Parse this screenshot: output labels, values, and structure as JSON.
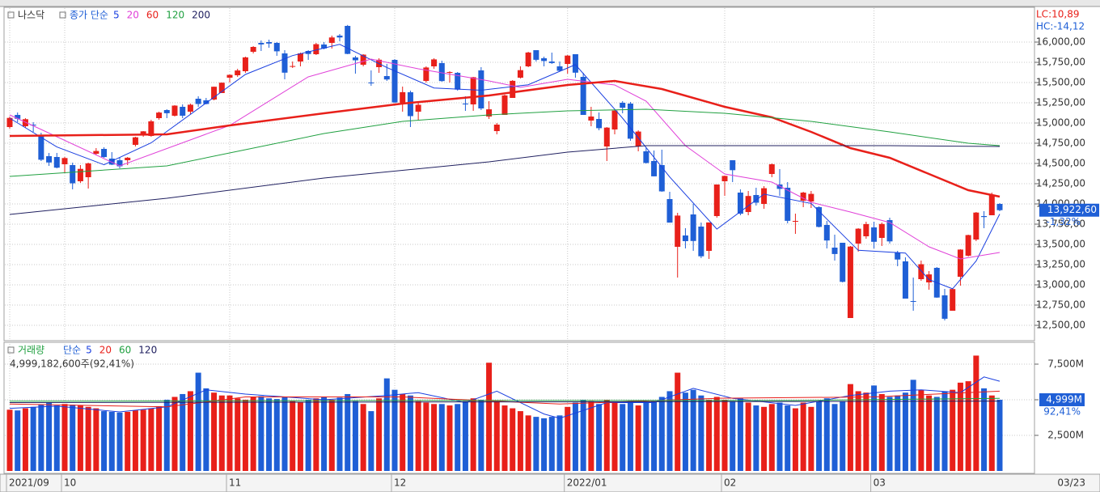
{
  "chart_data": {
    "type": "candlestick",
    "title": "나스닥",
    "categories": [
      "2021/09",
      null,
      null,
      null,
      null,
      null,
      null,
      "10",
      null,
      null,
      null,
      null,
      null,
      null,
      null,
      null,
      null,
      null,
      null,
      null,
      null,
      null,
      null,
      null,
      null,
      null,
      null,
      null,
      "11",
      null,
      null,
      null,
      null,
      null,
      null,
      null,
      null,
      null,
      null,
      null,
      null,
      null,
      null,
      null,
      null,
      null,
      null,
      null,
      null,
      "12",
      null,
      null,
      null,
      null,
      null,
      null,
      null,
      null,
      null,
      null,
      null,
      null,
      null,
      null,
      null,
      null,
      null,
      null,
      null,
      null,
      null,
      "2022/01",
      null,
      null,
      null,
      null,
      null,
      null,
      null,
      null,
      null,
      null,
      null,
      null,
      null,
      null,
      null,
      null,
      null,
      null,
      null,
      "02",
      null,
      null,
      null,
      null,
      null,
      null,
      null,
      null,
      null,
      null,
      null,
      null,
      null,
      null,
      null,
      null,
      null,
      null,
      "03",
      null,
      null,
      null,
      null,
      null,
      null,
      null,
      null,
      null,
      null,
      null,
      null,
      null,
      null,
      null,
      null
    ],
    "end_label": "03/23",
    "up_color": "#e8201a",
    "down_color": "#1f5fd6",
    "grid": true,
    "price": {
      "legend_label": "종가 단순",
      "ylim": [
        12320,
        16420
      ],
      "yticks": [
        {
          "value": 12500,
          "label": "12,500,00"
        },
        {
          "value": 12750,
          "label": "12,750,00"
        },
        {
          "value": 13000,
          "label": "13,000,00"
        },
        {
          "value": 13250,
          "label": "13,250,00"
        },
        {
          "value": 13500,
          "label": "13,500,00"
        },
        {
          "value": 13750,
          "label": "13,750,00"
        },
        {
          "value": 14000,
          "label": "14,000,00"
        },
        {
          "value": 14250,
          "label": "14,250,00"
        },
        {
          "value": 14500,
          "label": "14,500,00"
        },
        {
          "value": 14750,
          "label": "14,750,00"
        },
        {
          "value": 15000,
          "label": "15,000,00"
        },
        {
          "value": 15250,
          "label": "15,250,00"
        },
        {
          "value": 15500,
          "label": "15,500,00"
        },
        {
          "value": 15750,
          "label": "15,750,00"
        },
        {
          "value": 16000,
          "label": "16,000,00"
        }
      ],
      "open": [
        14950,
        15100,
        14960,
        14980,
        14850,
        14590,
        14580,
        14490,
        14480,
        14280,
        14330,
        14620,
        14680,
        14560,
        14540,
        14540,
        14730,
        14860,
        14840,
        15060,
        15160,
        15090,
        15200,
        15140,
        15300,
        15280,
        15290,
        15370,
        15560,
        15590,
        15640,
        15880,
        15990,
        16000,
        15990,
        15860,
        15700,
        15760,
        15890,
        15850,
        15970,
        15990,
        16080,
        16200,
        15810,
        15720,
        15500,
        15690,
        15580,
        15780,
        15250,
        15380,
        15140,
        15520,
        15700,
        15740,
        15620,
        15620,
        15240,
        15230,
        15650,
        15080,
        14900,
        15100,
        15310,
        15560,
        15700,
        15900,
        15800,
        15760,
        15700,
        15730,
        15850,
        15570,
        15030,
        15050,
        14710,
        14920,
        15250,
        15240,
        14710,
        14650,
        14530,
        14480,
        14060,
        13470,
        13610,
        13870,
        13720,
        13420,
        13850,
        14280,
        14540,
        14140,
        13900,
        14110,
        14000,
        14370,
        14240,
        14200,
        13790,
        14040,
        14030,
        13960,
        13740,
        13460,
        13520,
        12590,
        13510,
        13600,
        13710,
        13580,
        13800,
        13400,
        13290,
        12800,
        13070,
        13030,
        13210,
        12870,
        12680,
        13100,
        13360,
        13560,
        13850,
        13860,
        14000
      ],
      "high": [
        15080,
        15130,
        15060,
        15010,
        14880,
        14630,
        14630,
        14580,
        14510,
        14480,
        14510,
        14690,
        14700,
        14640,
        14580,
        14580,
        14830,
        14900,
        15040,
        15140,
        15170,
        15220,
        15230,
        15240,
        15330,
        15310,
        15450,
        15500,
        15600,
        15670,
        15820,
        15950,
        16020,
        16030,
        16000,
        15900,
        15760,
        15870,
        15900,
        15990,
        16000,
        16080,
        16100,
        16212,
        15830,
        15850,
        15650,
        15800,
        15730,
        15790,
        15450,
        15400,
        15260,
        15700,
        15800,
        15770,
        15640,
        15630,
        15330,
        15570,
        15690,
        15270,
        15000,
        15350,
        15530,
        15700,
        15880,
        15900,
        15820,
        15870,
        15760,
        15840,
        15850,
        15620,
        15200,
        15130,
        14950,
        15160,
        15270,
        15260,
        14910,
        14700,
        14660,
        14670,
        14150,
        13890,
        13700,
        14000,
        13770,
        13770,
        14240,
        14350,
        14540,
        14180,
        14160,
        14200,
        14220,
        14500,
        14430,
        14270,
        13880,
        14150,
        14160,
        13970,
        13790,
        13620,
        13520,
        13480,
        13700,
        13780,
        13780,
        13770,
        13830,
        13420,
        13340,
        13090,
        13300,
        13170,
        13220,
        12950,
        12960,
        13440,
        13620,
        13900,
        13910,
        14140,
        14010
      ],
      "low": [
        14930,
        15010,
        14940,
        14890,
        14530,
        14470,
        14440,
        14380,
        14180,
        14260,
        14190,
        14600,
        14570,
        14480,
        14440,
        14480,
        14710,
        14830,
        14830,
        15040,
        15060,
        15080,
        15060,
        15110,
        15200,
        15230,
        15280,
        15370,
        15500,
        15570,
        15620,
        15860,
        15890,
        15930,
        15830,
        15540,
        15680,
        15700,
        15780,
        15840,
        15910,
        15920,
        16010,
        15850,
        15610,
        15700,
        15460,
        15620,
        15520,
        15250,
        15140,
        14950,
        15030,
        15500,
        15670,
        15510,
        15500,
        15400,
        15150,
        15150,
        15160,
        15050,
        14860,
        15100,
        15310,
        15550,
        15690,
        15760,
        15700,
        15730,
        15640,
        15610,
        15560,
        15100,
        14960,
        14910,
        14530,
        14860,
        15120,
        14780,
        14650,
        14500,
        14340,
        14150,
        13770,
        13090,
        13450,
        13420,
        13330,
        13320,
        13830,
        14100,
        14270,
        13860,
        13860,
        13980,
        13940,
        14330,
        14100,
        13760,
        13630,
        13960,
        13950,
        13710,
        13450,
        13300,
        13030,
        12590,
        13410,
        13570,
        13450,
        13480,
        13510,
        13230,
        12830,
        12680,
        13050,
        12940,
        12840,
        12560,
        12680,
        12990,
        13350,
        13540,
        13700,
        13860,
        13910
      ],
      "close": [
        15063,
        15052,
        15047,
        14969,
        14546,
        14512,
        14448,
        14567,
        14255,
        14433,
        14501,
        14654,
        14579,
        14486,
        14465,
        14571,
        14823,
        14897,
        15021,
        15129,
        15121,
        15215,
        15090,
        15226,
        15235,
        15235,
        15448,
        15498,
        15595,
        15649,
        15811,
        15940,
        15971,
        15982,
        15886,
        15622,
        15704,
        15860,
        15853,
        15974,
        15921,
        16057,
        16057,
        15854,
        15775,
        15845,
        15491,
        15782,
        15538,
        15254,
        15381,
        15085,
        15225,
        15686,
        15786,
        15518,
        15630,
        15413,
        15237,
        15566,
        15180,
        15169,
        14980,
        15341,
        15521,
        15653,
        15871,
        15781,
        15766,
        15741,
        15645,
        15833,
        15622,
        15100,
        15080,
        14936,
        14943,
        15153,
        15188,
        14806,
        14894,
        14506,
        14341,
        14155,
        13769,
        13856,
        13540,
        13542,
        13353,
        13771,
        14240,
        14346,
        14417,
        13879,
        14098,
        14015,
        14194,
        14490,
        14186,
        13791,
        13790,
        14140,
        14124,
        13716,
        13548,
        13381,
        13037,
        13473,
        13694,
        13751,
        13532,
        13752,
        13537,
        13313,
        12830,
        12795,
        13255,
        13129,
        12843,
        12581,
        12948,
        13436,
        13615,
        13893,
        13838,
        14109,
        13922.6
      ],
      "moving_averages": [
        {
          "name": "5",
          "color": "#1a3fe0",
          "width": 1,
          "x": [
            0,
            6,
            12,
            18,
            24,
            30,
            36,
            42,
            48,
            54,
            60,
            66,
            72,
            78,
            84,
            90,
            96,
            102,
            108,
            114,
            117,
            120,
            123,
            126
          ],
          "values": [
            15060,
            14704,
            14484,
            14755,
            15177,
            15600,
            15833,
            15972,
            15686,
            15433,
            15405,
            15473,
            15721,
            15060,
            14333,
            13689,
            14121,
            14006,
            13427,
            13393,
            13064,
            12951,
            13295,
            13875
          ]
        },
        {
          "name": "20",
          "color": "#e040d8",
          "width": 1,
          "x": [
            0,
            14,
            28,
            38,
            46,
            52,
            61,
            65,
            71,
            77,
            81,
            86,
            91,
            97,
            102,
            107,
            112,
            117,
            121,
            126
          ],
          "values": [
            15100,
            14470,
            14970,
            15570,
            15790,
            15670,
            15520,
            15440,
            15540,
            15470,
            15270,
            14720,
            14370,
            14270,
            14020,
            13900,
            13770,
            13470,
            13320,
            13400
          ]
        },
        {
          "name": "60",
          "color": "#e8201a",
          "width": 2.5,
          "x": [
            0,
            20,
            28,
            40,
            50,
            61,
            71,
            77,
            83,
            91,
            97,
            102,
            107,
            112,
            117,
            122,
            126
          ],
          "values": [
            14840,
            14860,
            14970,
            15120,
            15240,
            15340,
            15470,
            15520,
            15420,
            15200,
            15070,
            14890,
            14690,
            14570,
            14370,
            14170,
            14090
          ]
        },
        {
          "name": "120",
          "color": "#20a040",
          "width": 1,
          "x": [
            0,
            20,
            30,
            40,
            50,
            61,
            71,
            81,
            91,
            102,
            112,
            122,
            126
          ],
          "values": [
            14340,
            14470,
            14670,
            14870,
            15020,
            15100,
            15150,
            15170,
            15120,
            15020,
            14890,
            14750,
            14720
          ]
        },
        {
          "name": "200",
          "color": "#202060",
          "width": 1,
          "x": [
            0,
            20,
            40,
            61,
            71,
            81,
            91,
            102,
            112,
            126
          ],
          "values": [
            13870,
            14070,
            14320,
            14520,
            14640,
            14720,
            14720,
            14720,
            14720,
            14710
          ]
        }
      ],
      "limit_labels": [
        {
          "text": "LC:10,89",
          "color": "#e8201a"
        },
        {
          "text": "HC:-14,12",
          "color": "#1f5fd6"
        }
      ],
      "last_label": "13,922,60",
      "change_label": "-1,32%"
    },
    "volume": {
      "title": "거래량",
      "legend_label": "단순",
      "ylim": [
        0,
        8920
      ],
      "yticks": [
        {
          "value": 2500,
          "label": "2,500M"
        },
        {
          "value": 5000,
          "label": "5,000M"
        },
        {
          "value": 7500,
          "label": "7,500M"
        }
      ],
      "values": [
        4300,
        4250,
        4400,
        4500,
        4650,
        4800,
        4600,
        4700,
        4650,
        4600,
        4500,
        4400,
        4200,
        4150,
        4100,
        4150,
        4250,
        4300,
        4400,
        4550,
        5000,
        5200,
        5400,
        5600,
        6900,
        5800,
        5500,
        5300,
        5300,
        5100,
        5000,
        5200,
        5250,
        5100,
        5050,
        5200,
        4900,
        4800,
        5000,
        5100,
        5200,
        5000,
        5150,
        5400,
        4900,
        4700,
        4200,
        5100,
        6500,
        5700,
        5400,
        5300,
        4900,
        4800,
        4700,
        4700,
        4600,
        4700,
        4900,
        5100,
        5000,
        7600,
        4900,
        4600,
        4400,
        4200,
        3900,
        3800,
        3700,
        3800,
        3900,
        4500,
        4800,
        5000,
        4900,
        4700,
        5000,
        4800,
        4700,
        4900,
        4600,
        4800,
        4900,
        5200,
        5600,
        6900,
        5500,
        5700,
        5300,
        5000,
        5200,
        5000,
        4900,
        5100,
        4800,
        4600,
        4500,
        4700,
        4800,
        4600,
        4400,
        4800,
        4500,
        4900,
        5100,
        4700,
        4900,
        6100,
        5600,
        5500,
        6000,
        5400,
        5200,
        5300,
        5500,
        6400,
        5700,
        5300,
        5200,
        5600,
        5700,
        6200,
        6300,
        8100,
        5800,
        5300,
        4999.1826
      ],
      "moving_averages": [
        {
          "name": "5",
          "color": "#1a3fe0",
          "x": [
            0,
            6,
            14,
            20,
            25,
            30,
            40,
            48,
            52,
            58,
            62,
            68,
            70,
            76,
            82,
            87,
            92,
            100,
            107,
            112,
            116,
            121,
            124,
            126
          ],
          "values": [
            4400,
            4550,
            4150,
            4500,
            5700,
            5400,
            5000,
            5300,
            5500,
            4800,
            5600,
            4000,
            3700,
            4800,
            4800,
            5800,
            5100,
            4600,
            5300,
            5600,
            5700,
            5500,
            6600,
            6300
          ]
        },
        {
          "name": "20",
          "color": "#e8201a",
          "x": [
            0,
            20,
            30,
            50,
            70,
            90,
            110,
            126
          ],
          "values": [
            4700,
            4500,
            5200,
            5200,
            4700,
            5100,
            5200,
            5600
          ]
        },
        {
          "name": "60",
          "color": "#20a040",
          "x": [
            0,
            50,
            100,
            126
          ],
          "values": [
            4900,
            4950,
            4950,
            5100
          ]
        },
        {
          "name": "120",
          "color": "#202060",
          "x": [
            0,
            126
          ],
          "values": [
            4800,
            4900
          ]
        }
      ],
      "summary": "4,999,182,600주(92,41%)",
      "last_label": "4,999M",
      "ratio_label": "92,41%"
    }
  }
}
